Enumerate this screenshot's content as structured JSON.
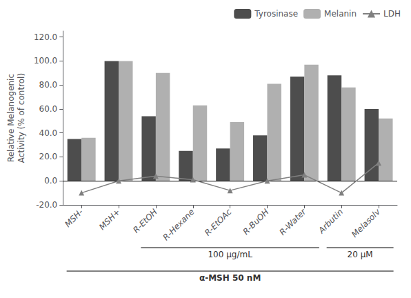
{
  "chart_data": {
    "type": "bar",
    "categories": [
      "MSH-",
      "MSH+",
      "R-EtOH",
      "R-Hexane",
      "R-EtOAc",
      "R-BuOH",
      "R-Water",
      "Arbutin",
      "Melasolv"
    ],
    "series": [
      {
        "name": "Tyrosinase",
        "type": "bar",
        "color": "#4d4d4d",
        "values": [
          35,
          100,
          54,
          25,
          27,
          38,
          87,
          88,
          60
        ]
      },
      {
        "name": "Melanin",
        "type": "bar",
        "color": "#b0b0b0",
        "values": [
          36,
          100,
          90,
          63,
          49,
          81,
          97,
          78,
          52
        ]
      },
      {
        "name": "LDH",
        "type": "line",
        "color": "#808080",
        "marker": "triangle",
        "values": [
          -10,
          0,
          4,
          1,
          -8,
          0,
          5,
          -10,
          15
        ]
      }
    ],
    "ylabel": "Relative Melanogenic\nActivity (% of control)",
    "ylim": [
      -20,
      125
    ],
    "yticks": [
      {
        "value": -20,
        "label": "-20.0"
      },
      {
        "value": 0,
        "label": "0.0"
      },
      {
        "value": 20,
        "label": "20.0"
      },
      {
        "value": 40,
        "label": "40.0"
      },
      {
        "value": 60,
        "label": "60.0"
      },
      {
        "value": 80,
        "label": "80.0"
      },
      {
        "value": 100,
        "label": "100.0"
      },
      {
        "value": 120,
        "label": "120.0"
      }
    ],
    "grid": false,
    "legend": "upper right",
    "annotations": [
      {
        "text": "100 μg/mL",
        "from": "R-EtOH",
        "to": "R-Water"
      },
      {
        "text": "20 μM",
        "from": "Arbutin",
        "to": "Melasolv"
      },
      {
        "text": "α-MSH 50 nM",
        "from": "MSH-",
        "to": "Melasolv"
      }
    ]
  }
}
